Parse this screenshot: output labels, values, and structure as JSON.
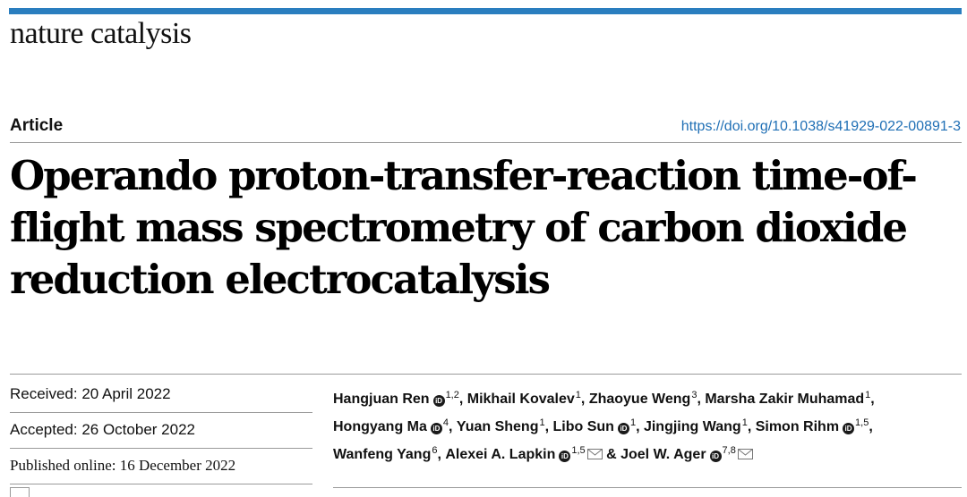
{
  "header": {
    "journal": "nature catalysis",
    "accent_color": "#2a7ebf"
  },
  "article": {
    "type": "Article",
    "doi": "https://doi.org/10.1038/s41929-022-00891-3",
    "title": "Operando proton-transfer-reaction time-of-flight mass spectrometry of carbon dioxide reduction electrocatalysis"
  },
  "dates": {
    "received": "Received: 20 April 2022",
    "accepted": "Accepted: 26 October 2022",
    "published": "Published online: 16 December 2022"
  },
  "authors": [
    {
      "name": "Hangjuan Ren",
      "orcid": true,
      "affil": "1,2",
      "sep": ", "
    },
    {
      "name": "Mikhail Kovalev",
      "orcid": false,
      "affil": "1",
      "sep": ", "
    },
    {
      "name": "Zhaoyue Weng",
      "orcid": false,
      "affil": "3",
      "sep": ", "
    },
    {
      "name": "Marsha Zakir Muhamad",
      "orcid": false,
      "affil": "1",
      "sep": ", "
    },
    {
      "name": "Hongyang Ma",
      "orcid": true,
      "affil": "4",
      "sep": ", "
    },
    {
      "name": "Yuan Sheng",
      "orcid": false,
      "affil": "1",
      "sep": ", "
    },
    {
      "name": "Libo Sun",
      "orcid": true,
      "affil": "1",
      "sep": ", "
    },
    {
      "name": "Jingjing Wang",
      "orcid": false,
      "affil": "1",
      "sep": ", "
    },
    {
      "name": "Simon Rihm",
      "orcid": true,
      "affil": "1,5",
      "sep": ", "
    },
    {
      "name": "Wanfeng Yang",
      "orcid": false,
      "affil": "6",
      "sep": ", "
    },
    {
      "name": "Alexei A. Lapkin",
      "orcid": true,
      "affil": "1,5",
      "mail": true,
      "sep": " & "
    },
    {
      "name": "Joel W. Ager",
      "orcid": true,
      "affil": "7,8",
      "mail": true,
      "sep": ""
    }
  ],
  "icons": {
    "orcid": "orcid-icon",
    "mail": "envelope-icon"
  }
}
